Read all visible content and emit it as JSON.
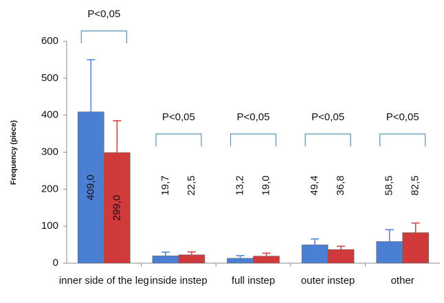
{
  "chart_data": {
    "type": "bar",
    "y_label": "Frequency (piece)",
    "categories": [
      "inner side of the leg",
      "inside instep",
      "full instep",
      "outer instep",
      "other"
    ],
    "series": [
      {
        "color": "#4a7fd4",
        "values": [
          409.0,
          19.7,
          13.2,
          49.4,
          58.5
        ],
        "value_labels": [
          "409,0",
          "19,7",
          "13,2",
          "49,4",
          "58,5"
        ],
        "errors": [
          141,
          10,
          7,
          16,
          32
        ]
      },
      {
        "color": "#d03a3a",
        "values": [
          299.0,
          22.5,
          19.0,
          36.8,
          82.5
        ],
        "value_labels": [
          "299,0",
          "22,5",
          "19,0",
          "36,8",
          "82,5"
        ],
        "errors": [
          86,
          8,
          8,
          9,
          26
        ]
      }
    ],
    "annotations": [
      "P<0,05",
      "P<0,05",
      "P<0,05",
      "P<0,05",
      "P<0,05"
    ],
    "ylim": [
      0,
      600
    ],
    "yticks": [
      0,
      100,
      200,
      300,
      400,
      500,
      600
    ],
    "grid": false
  }
}
